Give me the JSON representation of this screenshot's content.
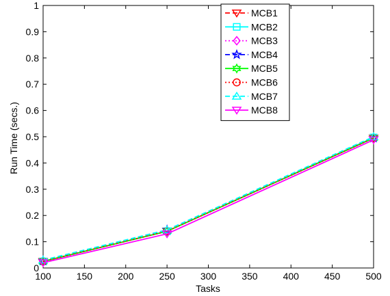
{
  "chart_data": {
    "type": "line",
    "title": "",
    "xlabel": "Tasks",
    "ylabel": "Run Time (secs.)",
    "xlim": [
      100,
      500
    ],
    "ylim": [
      0,
      1
    ],
    "xticks": [
      100,
      150,
      200,
      250,
      300,
      350,
      400,
      450,
      500
    ],
    "yticks": [
      0,
      0.1,
      0.2,
      0.3,
      0.4,
      0.5,
      0.6,
      0.7,
      0.8,
      0.9,
      1
    ],
    "grid": false,
    "legend_position": "top-right (inside, offset from axis)",
    "x": [
      100,
      250,
      500
    ],
    "series": [
      {
        "name": "MCB1",
        "values": [
          0.025,
          0.14,
          0.495
        ],
        "color": "#ff0000",
        "marker": "triangle-down",
        "dash": "dashed"
      },
      {
        "name": "MCB2",
        "values": [
          0.025,
          0.14,
          0.497
        ],
        "color": "#00ffff",
        "marker": "square",
        "dash": "solid"
      },
      {
        "name": "MCB3",
        "values": [
          0.025,
          0.14,
          0.495
        ],
        "color": "#ff00ff",
        "marker": "diamond",
        "dash": "dotted"
      },
      {
        "name": "MCB4",
        "values": [
          0.028,
          0.145,
          0.495
        ],
        "color": "#0000ff",
        "marker": "star",
        "dash": "dashed"
      },
      {
        "name": "MCB5",
        "values": [
          0.025,
          0.14,
          0.495
        ],
        "color": "#00ff00",
        "marker": "hexagram",
        "dash": "solid"
      },
      {
        "name": "MCB6",
        "values": [
          0.025,
          0.14,
          0.495
        ],
        "color": "#ff0000",
        "marker": "circle",
        "dash": "dotted"
      },
      {
        "name": "MCB7",
        "values": [
          0.03,
          0.145,
          0.5
        ],
        "color": "#00ffff",
        "marker": "triangle-up",
        "dash": "dashed"
      },
      {
        "name": "MCB8",
        "values": [
          0.02,
          0.13,
          0.488
        ],
        "color": "#ff00ff",
        "marker": "triangle-down",
        "dash": "solid"
      }
    ]
  }
}
